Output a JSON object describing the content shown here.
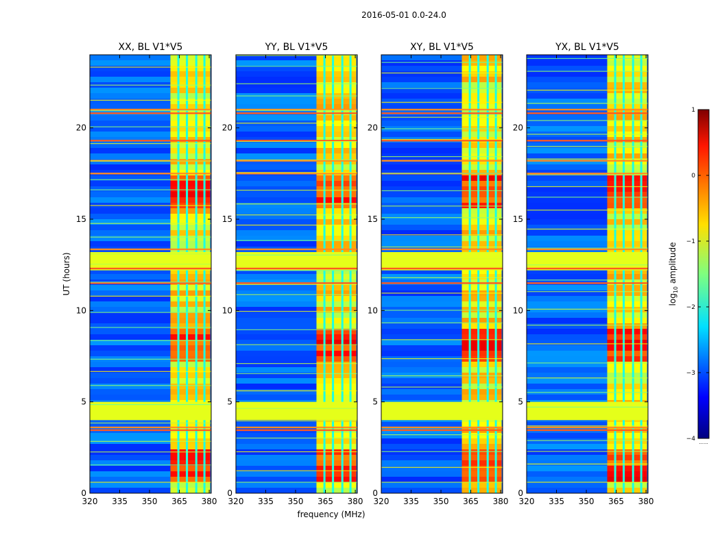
{
  "figure": {
    "suptitle": "2016-05-01 0.0-24.0"
  },
  "chart_data": {
    "type": "heatmap",
    "title": "2016-05-01 0.0-24.0",
    "xlabel": "frequency (MHz)",
    "ylabel": "UT (hours)",
    "xlim": [
      320,
      381
    ],
    "ylim": [
      0,
      24
    ],
    "xticks": [
      "320",
      "335",
      "350",
      "365",
      "380"
    ],
    "xtick_values": [
      320,
      335,
      350,
      365,
      380
    ],
    "yticks": [
      "0",
      "5",
      "10",
      "15",
      "20"
    ],
    "ytick_values": [
      0,
      5,
      10,
      15,
      20
    ],
    "colormap": "jet",
    "panels": [
      {
        "title": "XX, BL V1*V5",
        "polarization": "XX",
        "baseline": "V1*V5"
      },
      {
        "title": "YY, BL V1*V5",
        "polarization": "YY",
        "baseline": "V1*V5"
      },
      {
        "title": "XY, BL V1*V5",
        "polarization": "XY",
        "baseline": "V1*V5"
      },
      {
        "title": "YX, BL V1*V5",
        "polarization": "YX",
        "baseline": "V1*V5"
      }
    ],
    "features": {
      "rfi_band_mhz": [
        360.5,
        380.5
      ],
      "rfi_gap_channels_mhz": [
        364.5,
        368.8,
        373.5,
        377.6
      ],
      "flagged_hours": [
        [
          4.0,
          5.0
        ],
        [
          12.2,
          13.2
        ]
      ],
      "flag_value_log": -1.0,
      "flag_edge_lines_hours": [
        3.45,
        3.6,
        12.3,
        13.35,
        20.8,
        21.0,
        11.5,
        18.2,
        19.3,
        17.5
      ],
      "background_log_amplitude": -2.9,
      "rfi_peak_log_amplitude": 0.5,
      "strong_rfi_hours": [
        [
          0.5,
          2.5
        ],
        [
          7.0,
          9.0
        ],
        [
          15.5,
          17.5
        ]
      ]
    },
    "colorbar": {
      "label": "log10 amplitude",
      "label_base": "log",
      "label_sub": "10",
      "label_rest": " amplitude",
      "range": [
        -4,
        1
      ],
      "ticks": [
        1,
        0,
        -1,
        -2,
        -3,
        -4
      ],
      "tick_labels": [
        "1",
        "0",
        "−1",
        "−2",
        "−3",
        "−4"
      ],
      "footer": "......"
    }
  }
}
